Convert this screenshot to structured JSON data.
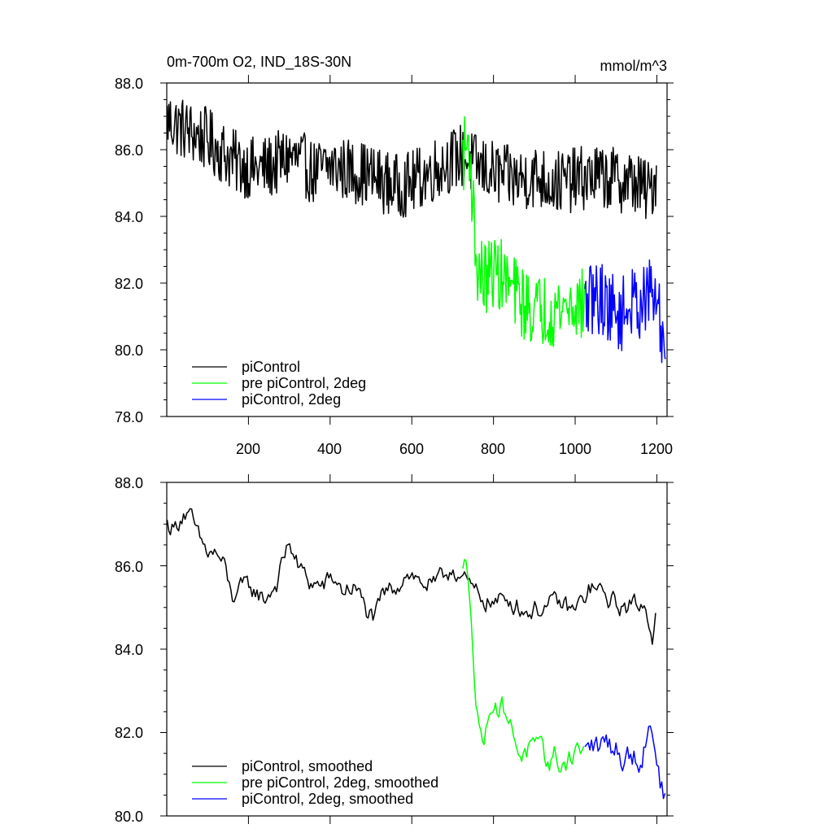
{
  "chart_data": [
    {
      "type": "line",
      "title": "0m-700m O2, IND_18S-30N",
      "units": "mmol/m^3",
      "xlim": [
        0,
        1225
      ],
      "ylim": [
        78,
        88
      ],
      "yticks": [
        "78.0",
        "80.0",
        "82.0",
        "84.0",
        "86.0",
        "88.0"
      ],
      "xticks": [
        "200",
        "400",
        "600",
        "800",
        "1000",
        "1200"
      ],
      "grid": false,
      "legend_placement": "bottom-left",
      "series": [
        {
          "name": "piControl",
          "color": "#000000",
          "anchors": [
            [
              1,
              86.9
            ],
            [
              30,
              86.7
            ],
            [
              60,
              86.5
            ],
            [
              100,
              86.3
            ],
            [
              140,
              85.9
            ],
            [
              170,
              85.6
            ],
            [
              220,
              85.4
            ],
            [
              260,
              85.5
            ],
            [
              300,
              85.8
            ],
            [
              330,
              85.6
            ],
            [
              360,
              85.3
            ],
            [
              400,
              85.5
            ],
            [
              440,
              85.4
            ],
            [
              480,
              85.3
            ],
            [
              520,
              85.1
            ],
            [
              560,
              84.9
            ],
            [
              600,
              85.0
            ],
            [
              640,
              85.3
            ],
            [
              680,
              85.6
            ],
            [
              720,
              85.8
            ],
            [
              760,
              85.5
            ],
            [
              800,
              85.3
            ],
            [
              850,
              85.1
            ],
            [
              900,
              85.2
            ],
            [
              950,
              85.0
            ],
            [
              1000,
              85.1
            ],
            [
              1050,
              85.2
            ],
            [
              1100,
              85.1
            ],
            [
              1150,
              85.0
            ],
            [
              1180,
              84.7
            ],
            [
              1200,
              85.3
            ]
          ]
        },
        {
          "name": "pre piControl, 2deg",
          "color": "#00ff00",
          "anchors": [
            [
              725,
              85.8
            ],
            [
              740,
              86.3
            ],
            [
              750,
              84.3
            ],
            [
              760,
              82.4
            ],
            [
              780,
              82.1
            ],
            [
              800,
              82.4
            ],
            [
              820,
              82.2
            ],
            [
              840,
              81.9
            ],
            [
              860,
              81.6
            ],
            [
              880,
              81.3
            ],
            [
              900,
              81.2
            ],
            [
              950,
              81.2
            ],
            [
              1000,
              81.4
            ],
            [
              1024,
              81.3
            ]
          ]
        },
        {
          "name": "piControl, 2deg",
          "color": "#0000ff",
          "anchors": [
            [
              1024,
              81.3
            ],
            [
              1050,
              81.6
            ],
            [
              1070,
              81.5
            ],
            [
              1090,
              81.2
            ],
            [
              1110,
              81.0
            ],
            [
              1130,
              81.3
            ],
            [
              1150,
              81.4
            ],
            [
              1170,
              81.5
            ],
            [
              1190,
              81.7
            ],
            [
              1200,
              81.4
            ],
            [
              1210,
              80.6
            ],
            [
              1222,
              80.1
            ]
          ]
        }
      ]
    },
    {
      "type": "line",
      "xlim": [
        0,
        1225
      ],
      "ylim": [
        80,
        88
      ],
      "yticks": [
        "80.0",
        "82.0",
        "84.0",
        "86.0",
        "88.0"
      ],
      "grid": false,
      "legend_placement": "bottom-left",
      "series": [
        {
          "name": "piControl, smoothed",
          "color": "#000000",
          "anchors": [
            [
              1,
              87.0
            ],
            [
              20,
              86.9
            ],
            [
              40,
              87.3
            ],
            [
              60,
              87.1
            ],
            [
              80,
              86.6
            ],
            [
              100,
              86.3
            ],
            [
              120,
              86.3
            ],
            [
              140,
              86.0
            ],
            [
              160,
              85.2
            ],
            [
              170,
              85.4
            ],
            [
              200,
              85.5
            ],
            [
              240,
              85.2
            ],
            [
              270,
              85.6
            ],
            [
              300,
              86.6
            ],
            [
              320,
              86.0
            ],
            [
              350,
              85.6
            ],
            [
              380,
              85.5
            ],
            [
              410,
              85.7
            ],
            [
              430,
              85.4
            ],
            [
              460,
              85.5
            ],
            [
              490,
              84.9
            ],
            [
              510,
              84.7
            ],
            [
              530,
              85.3
            ],
            [
              560,
              85.5
            ],
            [
              590,
              85.9
            ],
            [
              620,
              85.6
            ],
            [
              660,
              85.5
            ],
            [
              700,
              86.0
            ],
            [
              730,
              85.6
            ],
            [
              760,
              85.3
            ],
            [
              800,
              85.1
            ],
            [
              840,
              85.2
            ],
            [
              880,
              84.9
            ],
            [
              920,
              85.0
            ],
            [
              960,
              85.1
            ],
            [
              1000,
              84.9
            ],
            [
              1040,
              85.5
            ],
            [
              1080,
              85.2
            ],
            [
              1120,
              85.0
            ],
            [
              1160,
              85.1
            ],
            [
              1180,
              84.8
            ],
            [
              1190,
              84.3
            ],
            [
              1200,
              85.4
            ]
          ]
        },
        {
          "name": "pre piControl, 2deg, smoothed",
          "color": "#00ff00",
          "anchors": [
            [
              725,
              85.8
            ],
            [
              735,
              86.1
            ],
            [
              745,
              85.2
            ],
            [
              755,
              83.0
            ],
            [
              765,
              82.0
            ],
            [
              780,
              81.9
            ],
            [
              795,
              82.9
            ],
            [
              810,
              82.6
            ],
            [
              830,
              82.6
            ],
            [
              845,
              82.0
            ],
            [
              855,
              81.8
            ],
            [
              870,
              81.5
            ],
            [
              890,
              81.6
            ],
            [
              910,
              81.5
            ],
            [
              930,
              81.3
            ],
            [
              950,
              81.4
            ],
            [
              970,
              81.2
            ],
            [
              990,
              81.5
            ],
            [
              1010,
              81.6
            ],
            [
              1024,
              81.7
            ]
          ]
        },
        {
          "name": "piControl, 2deg, smoothed",
          "color": "#0000ff",
          "anchors": [
            [
              1024,
              81.5
            ],
            [
              1040,
              81.7
            ],
            [
              1060,
              81.6
            ],
            [
              1080,
              81.8
            ],
            [
              1100,
              81.6
            ],
            [
              1120,
              81.4
            ],
            [
              1140,
              81.5
            ],
            [
              1160,
              81.4
            ],
            [
              1180,
              82.1
            ],
            [
              1195,
              82.0
            ],
            [
              1205,
              81.0
            ],
            [
              1215,
              80.5
            ],
            [
              1222,
              80.4
            ]
          ]
        }
      ]
    }
  ]
}
